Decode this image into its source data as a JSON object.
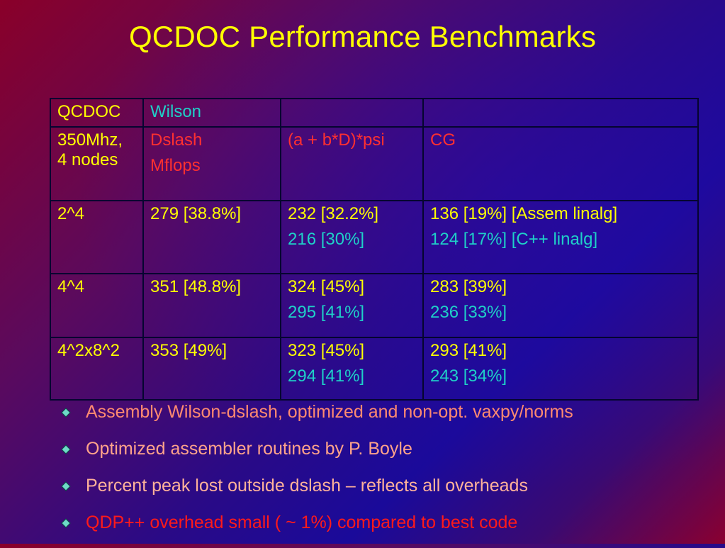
{
  "title": "QCDOC Performance Benchmarks",
  "table": {
    "header1": {
      "c1": "QCDOC",
      "c2": "Wilson",
      "c3": "",
      "c4": ""
    },
    "header2": {
      "c1": [
        "350Mhz,",
        "4 nodes"
      ],
      "c2": [
        "Dslash",
        "Mflops"
      ],
      "c3": "(a + b*D)*psi",
      "c4": "CG"
    },
    "rows": [
      {
        "lattice": "2^4",
        "dslash": "279 [38.8%]",
        "axpy": [
          "232  [32.2%]",
          "216  [30%]"
        ],
        "cg": [
          "136 [19%]     [Assem linalg]",
          "124 [17%]     [C++ linalg]"
        ]
      },
      {
        "lattice": "4^4",
        "dslash": "351 [48.8%]",
        "axpy": [
          "324  [45%]",
          "295  [41%]"
        ],
        "cg": [
          "283 [39%]",
          "236 [33%]"
        ]
      },
      {
        "lattice": "4^2x8^2",
        "dslash": "353 [49%]",
        "axpy": [
          "323  [45%]",
          "294  [41%]"
        ],
        "cg": [
          "293 [41%]",
          "243 [34%]"
        ]
      }
    ]
  },
  "bullets": [
    "Assembly Wilson-dslash, optimized and non-opt. vaxpy/norms",
    "Optimized assembler routines by P. Boyle",
    "Percent peak lost outside dslash – reflects all overheads",
    "QDP++ overhead small ( ~ 1%) compared to best code"
  ],
  "colors": {
    "title": "#ffff00",
    "yellow_text": "#ffff00",
    "cyan_text": "#1fd0c8",
    "red_text": "#ff3030",
    "bullet_red": "#ff1a1a"
  },
  "icons": {
    "bullet": "diamond-bullet-icon"
  }
}
